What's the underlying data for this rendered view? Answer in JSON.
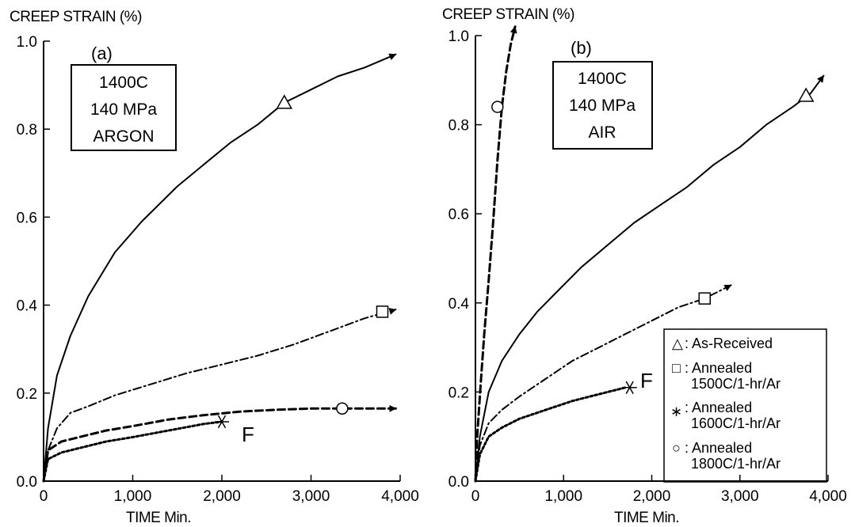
{
  "chart_data": [
    {
      "type": "line",
      "panel_label": "(a)",
      "ylabel": "CREEP STRAIN (%)",
      "xlabel": "TIME  Min.",
      "xlim": [
        0,
        4000
      ],
      "ylim": [
        0,
        1.0
      ],
      "x_ticks": [
        0,
        1000,
        2000,
        3000,
        4000
      ],
      "x_tick_labels": [
        "0",
        "1,000",
        "2,000",
        "3,000",
        "4,000"
      ],
      "y_ticks": [
        0,
        0.2,
        0.4,
        0.6,
        0.8,
        1.0
      ],
      "y_tick_labels": [
        "0.0",
        "0.2",
        "0.4",
        "0.6",
        "0.8",
        "1.0"
      ],
      "grid": false,
      "legend": "none",
      "conditions": [
        "1400C",
        "140 MPa",
        "ARGON"
      ],
      "failure_label": "F",
      "series": [
        {
          "name": "As-Received",
          "marker": "triangle",
          "style": "solid",
          "arrow": true,
          "x": [
            0,
            50,
            150,
            300,
            500,
            800,
            1100,
            1500,
            1800,
            2100,
            2400,
            2700,
            3000,
            3300,
            3600,
            3950
          ],
          "y": [
            0,
            0.12,
            0.24,
            0.33,
            0.42,
            0.52,
            0.59,
            0.67,
            0.72,
            0.77,
            0.81,
            0.86,
            0.89,
            0.92,
            0.94,
            0.97
          ],
          "marker_point": [
            2700,
            0.86
          ]
        },
        {
          "name": "Annealed 1500C/1-hr/Ar",
          "marker": "square",
          "style": "dash-dot",
          "arrow": true,
          "x": [
            0,
            50,
            150,
            300,
            500,
            800,
            1200,
            1600,
            2000,
            2400,
            2800,
            3200,
            3600,
            3950
          ],
          "y": [
            0,
            0.07,
            0.12,
            0.155,
            0.17,
            0.195,
            0.22,
            0.245,
            0.265,
            0.285,
            0.31,
            0.34,
            0.37,
            0.39
          ],
          "marker_point": [
            3800,
            0.385
          ]
        },
        {
          "name": "Annealed 1600C/1-hr/Ar",
          "marker": "star",
          "style": "dotted",
          "arrow": false,
          "failed": true,
          "x": [
            0,
            50,
            200,
            400,
            700,
            1000,
            1400,
            1800,
            2000
          ],
          "y": [
            0,
            0.05,
            0.065,
            0.075,
            0.09,
            0.1,
            0.115,
            0.13,
            0.135
          ],
          "marker_point": [
            2000,
            0.135
          ]
        },
        {
          "name": "Annealed 1800C/1-hr/Ar",
          "marker": "circle",
          "style": "dashed",
          "arrow": true,
          "x": [
            0,
            50,
            200,
            400,
            700,
            1000,
            1400,
            1800,
            2200,
            2600,
            3000,
            3400,
            3950
          ],
          "y": [
            0,
            0.07,
            0.09,
            0.1,
            0.115,
            0.125,
            0.14,
            0.15,
            0.158,
            0.162,
            0.165,
            0.165,
            0.165
          ],
          "marker_point": [
            3350,
            0.165
          ]
        }
      ]
    },
    {
      "type": "line",
      "panel_label": "(b)",
      "ylabel": "CREEP STRAIN (%)",
      "xlabel": "TIME  Min.",
      "xlim": [
        0,
        4000
      ],
      "ylim": [
        0,
        1.0
      ],
      "x_ticks": [
        0,
        1000,
        2000,
        3000,
        4000
      ],
      "x_tick_labels": [
        "0",
        "1,000",
        "2,000",
        "3,000",
        "4,000"
      ],
      "y_ticks": [
        0,
        0.2,
        0.4,
        0.6,
        0.8,
        1.0
      ],
      "y_tick_labels": [
        "0.0",
        "0.2",
        "0.4",
        "0.6",
        "0.8",
        "1.0"
      ],
      "grid": false,
      "legend": "bottom-right",
      "conditions": [
        "1400C",
        "140 MPa",
        "AIR"
      ],
      "failure_label": "F",
      "legend_entries": [
        {
          "symbol": "△",
          "lines": [
            ": As-Received"
          ]
        },
        {
          "symbol": "□",
          "lines": [
            ": Annealed",
            "1500C/1-hr/Ar"
          ]
        },
        {
          "symbol": "∗",
          "lines": [
            ": Annealed",
            "1600C/1-hr/Ar"
          ]
        },
        {
          "symbol": "○",
          "lines": [
            ": Annealed",
            "1800C/1-hr/Ar"
          ]
        }
      ],
      "series": [
        {
          "name": "As-Received",
          "marker": "triangle",
          "style": "solid",
          "arrow": true,
          "x": [
            0,
            50,
            150,
            300,
            500,
            700,
            900,
            1200,
            1500,
            1800,
            2100,
            2400,
            2700,
            3000,
            3300,
            3600,
            3800,
            3950
          ],
          "y": [
            0,
            0.1,
            0.2,
            0.27,
            0.33,
            0.38,
            0.42,
            0.48,
            0.53,
            0.58,
            0.62,
            0.66,
            0.71,
            0.75,
            0.8,
            0.84,
            0.87,
            0.91
          ],
          "marker_point": [
            3750,
            0.865
          ]
        },
        {
          "name": "Annealed 1500C/1-hr/Ar",
          "marker": "square",
          "style": "dash-dot",
          "arrow": true,
          "x": [
            0,
            50,
            150,
            300,
            500,
            800,
            1100,
            1400,
            1700,
            2000,
            2300,
            2600,
            2900
          ],
          "y": [
            0,
            0.08,
            0.13,
            0.16,
            0.19,
            0.23,
            0.27,
            0.3,
            0.33,
            0.36,
            0.39,
            0.41,
            0.44
          ],
          "marker_point": [
            2600,
            0.41
          ]
        },
        {
          "name": "Annealed 1600C/1-hr/Ar",
          "marker": "star",
          "style": "dotted",
          "arrow": false,
          "failed": true,
          "x": [
            0,
            50,
            150,
            300,
            500,
            800,
            1100,
            1400,
            1700
          ],
          "y": [
            0,
            0.06,
            0.1,
            0.12,
            0.14,
            0.16,
            0.18,
            0.195,
            0.21
          ],
          "marker_point": [
            1750,
            0.21
          ]
        },
        {
          "name": "Annealed 1800C/1-hr/Ar",
          "marker": "circle",
          "style": "dashed",
          "arrow": true,
          "x": [
            0,
            20,
            60,
            100,
            150,
            200,
            250,
            300,
            350,
            400,
            450
          ],
          "y": [
            0,
            0.1,
            0.22,
            0.33,
            0.45,
            0.58,
            0.72,
            0.84,
            0.92,
            0.98,
            1.02
          ],
          "marker_point": [
            250,
            0.84
          ]
        }
      ]
    }
  ]
}
